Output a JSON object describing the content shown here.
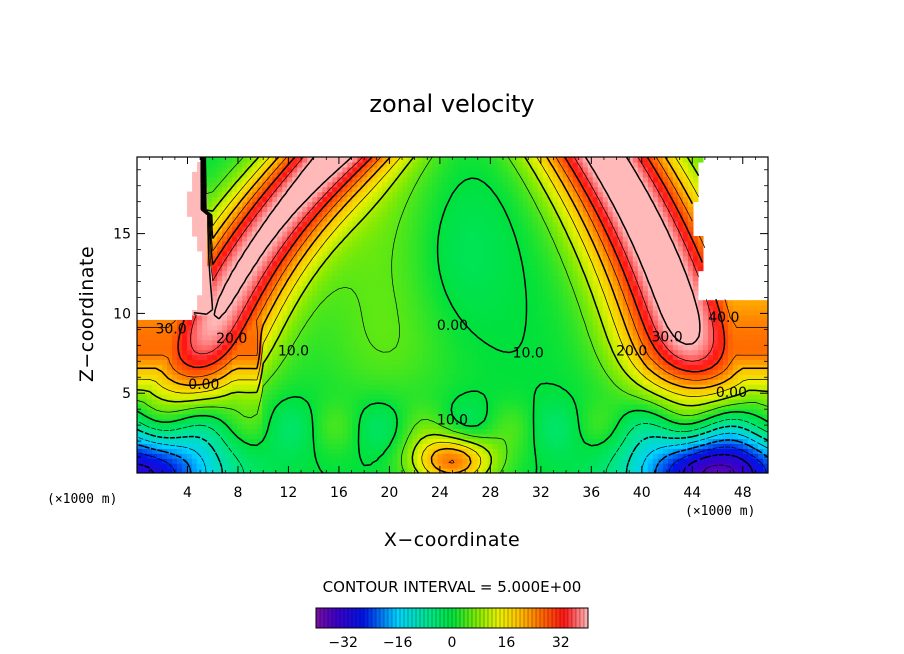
{
  "chart_data": {
    "type": "heatmap",
    "title": "zonal velocity",
    "xlabel": "X−coordinate",
    "ylabel": "Z−coordinate",
    "x_unit_label": "(×1000 m)",
    "xlim": [
      0,
      50
    ],
    "ylim": [
      0,
      19.8
    ],
    "x_ticks": [
      4,
      8,
      12,
      16,
      20,
      24,
      28,
      32,
      36,
      40,
      44,
      48
    ],
    "y_ticks": [
      5,
      10,
      15
    ],
    "contour_interval_text": "CONTOUR INTERVAL = 5.000E+00",
    "contour_interval": 5.0,
    "colorbar": {
      "min": -40,
      "max": 40,
      "ticks": [
        -32,
        -16,
        0,
        16,
        32
      ],
      "tick_labels": [
        "−32",
        "−16",
        "0",
        "16",
        "32"
      ]
    },
    "contour_labels": [
      {
        "text": "30.0",
        "x": 2.7,
        "z": 9.0
      },
      {
        "text": "20.0",
        "x": 7.5,
        "z": 8.4
      },
      {
        "text": "10.0",
        "x": 12.4,
        "z": 7.6
      },
      {
        "text": "0.00",
        "x": 5.3,
        "z": 5.5
      },
      {
        "text": "0.00",
        "x": 25.0,
        "z": 9.2
      },
      {
        "text": "10.0",
        "x": 31.0,
        "z": 7.5
      },
      {
        "text": "10.0",
        "x": 25.0,
        "z": 3.3
      },
      {
        "text": "30.0",
        "x": 42.0,
        "z": 8.5
      },
      {
        "text": "20.0",
        "x": 39.2,
        "z": 7.6
      },
      {
        "text": "40.0",
        "x": 46.5,
        "z": 9.7
      },
      {
        "text": "0.00",
        "x": 47.1,
        "z": 5.0
      }
    ],
    "colors": {
      "min": "#7a0fa0",
      "low": "#0000e0",
      "neg_mid": "#00e0ff",
      "zero": "#00e060",
      "pos_mid": "#f0f000",
      "high": "#ff1010",
      "max": "#ffb8b8"
    }
  }
}
